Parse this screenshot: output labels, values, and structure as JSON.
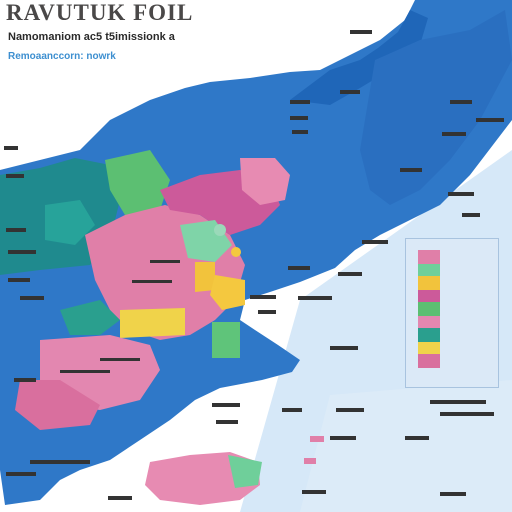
{
  "map": {
    "title": "RAVUTUK FOIL",
    "subtitle": "Namomaniom ac5 t5imissionk a",
    "legend_text": "Remoaanccorn: nowrk",
    "colors": {
      "sea": "#d6e8f8",
      "land_base": "#2f78c8",
      "land_dark": "#1f5fa8",
      "teal": "#208b8c",
      "green": "#5cbf72",
      "pink": "#e07fa8",
      "magenta": "#cc5a9a",
      "yellow": "#f2c33c",
      "mint": "#6fcf9a",
      "label": "#333333"
    }
  }
}
